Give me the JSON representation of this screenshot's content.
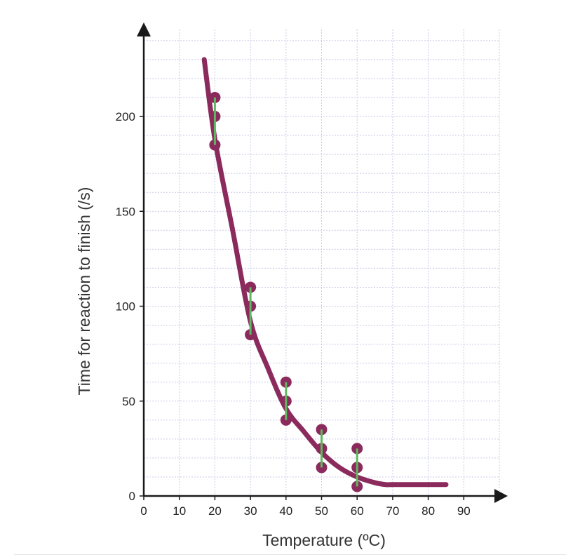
{
  "chart_data": {
    "type": "scatter",
    "title": "",
    "xlabel": "Temperature (ºC)",
    "ylabel": "Time for reaction to finish (/s)",
    "xlim": [
      0,
      100
    ],
    "ylim": [
      0,
      240
    ],
    "grid": true,
    "x_ticks": [
      0,
      10,
      20,
      30,
      40,
      50,
      60,
      70,
      80,
      90
    ],
    "x_tick_labels": [
      "0",
      "10",
      "20",
      "30",
      "40",
      "50",
      "60",
      "70",
      "80",
      "90"
    ],
    "y_ticks": [
      0,
      50,
      100,
      150,
      200
    ],
    "y_tick_labels": [
      "0",
      "50",
      "100",
      "150",
      "200"
    ],
    "series": [
      {
        "kind": "points",
        "x": [
          20,
          20,
          20,
          30,
          30,
          30,
          40,
          40,
          40,
          50,
          50,
          50,
          60,
          60,
          60
        ],
        "y": [
          210,
          200,
          185,
          110,
          100,
          85,
          60,
          50,
          40,
          35,
          25,
          15,
          25,
          15,
          5
        ]
      },
      {
        "kind": "error_bars",
        "x": [
          20,
          30,
          40,
          50,
          60
        ],
        "low": [
          185,
          85,
          40,
          15,
          5
        ],
        "high": [
          210,
          110,
          60,
          35,
          25
        ]
      },
      {
        "kind": "curve",
        "x": [
          17,
          20,
          25,
          30,
          35,
          40,
          45,
          50,
          55,
          60,
          65,
          68,
          70,
          80,
          85
        ],
        "y": [
          230,
          188,
          140,
          92,
          67,
          46,
          34,
          23,
          15,
          10,
          7,
          6,
          6,
          6,
          6
        ]
      }
    ],
    "colors": {
      "curve": "#8b2a5c",
      "points": "#8b2a5c",
      "error_bars": "#5fb85f",
      "axes": "#1a1a1a",
      "grid": "#c9cbe8"
    }
  }
}
